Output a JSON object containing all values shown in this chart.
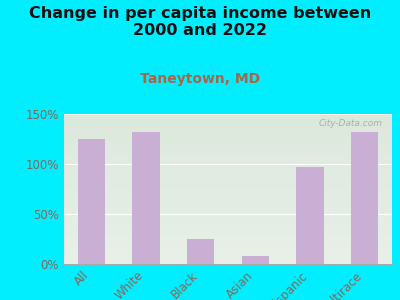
{
  "title": "Change in per capita income between\n2000 and 2022",
  "subtitle": "Taneytown, MD",
  "categories": [
    "All",
    "White",
    "Black",
    "Asian",
    "Hispanic",
    "Multirace"
  ],
  "values": [
    125,
    132,
    25,
    8,
    97,
    132
  ],
  "bar_color": "#c9afd4",
  "background_outer": "#00eeff",
  "background_inner_top": "#dde8dd",
  "background_inner_bottom": "#e8f0e8",
  "title_fontsize": 11.5,
  "subtitle_fontsize": 10,
  "subtitle_color": "#aa6644",
  "title_color": "#111111",
  "tick_label_color": "#886655",
  "ylim": [
    0,
    150
  ],
  "yticks": [
    0,
    50,
    100,
    150
  ],
  "watermark": "City-Data.com"
}
